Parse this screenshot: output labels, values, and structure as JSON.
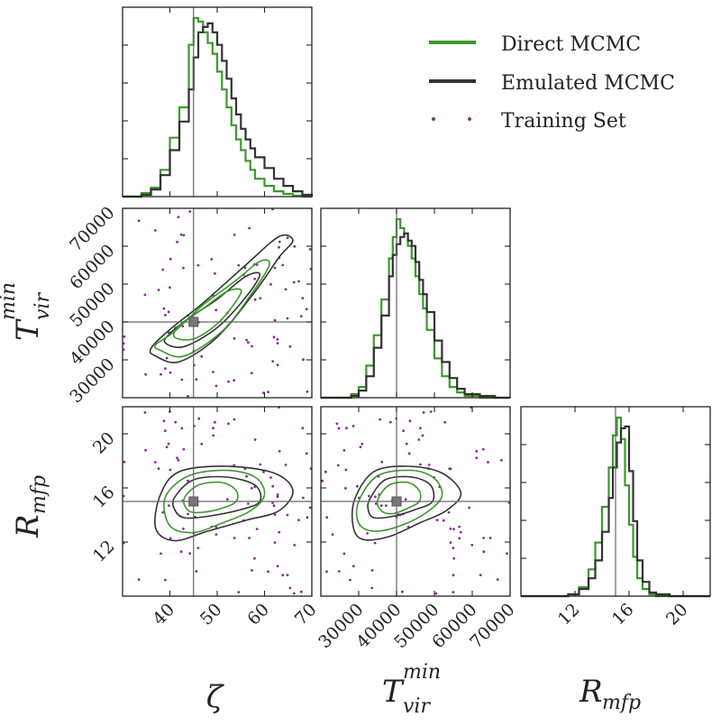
{
  "legend": {
    "items": [
      {
        "label": "Direct MCMC",
        "color": "#3a9a2a",
        "marker": "line"
      },
      {
        "label": "Emulated MCMC",
        "color": "#333333",
        "marker": "line"
      },
      {
        "label": "Training Set",
        "color": "#8a2a9a",
        "marker": "dots"
      }
    ]
  },
  "axis_labels": {
    "zeta": "ζ",
    "tvir_base": "T",
    "tvir_sup": "min",
    "tvir_sub": "vir",
    "rmfp_base": "R",
    "rmfp_sub": "mfp"
  },
  "chart_data": [
    {
      "type": "corner",
      "parameters": [
        "ζ",
        "T_vir^min",
        "R_mfp"
      ],
      "truth": {
        "zeta": 45,
        "tvir": 40000,
        "rmfp": 15
      },
      "ranges": {
        "zeta": [
          30,
          70
        ],
        "tvir": [
          20000,
          70000
        ],
        "rmfp": [
          8,
          22
        ]
      },
      "ticks": {
        "zeta": [
          40,
          50,
          60,
          70
        ],
        "tvir": [
          30000,
          40000,
          50000,
          60000,
          70000
        ],
        "rmfp": [
          12,
          16,
          20
        ]
      },
      "tick_labels": {
        "zeta": [
          "40",
          "50",
          "60",
          "70"
        ],
        "tvir_x": [
          "30000",
          "40000",
          "50000",
          "60000",
          "70000"
        ],
        "tvir_y": [
          "30000",
          "40000",
          "50000",
          "60000",
          "70000"
        ],
        "rmfp_x": [
          "12",
          "16",
          "20"
        ],
        "rmfp_y": [
          "12",
          "16",
          "20"
        ]
      }
    },
    {
      "type": "histogram",
      "panel": "zeta marginal",
      "bin_edges": [
        30,
        32,
        34,
        36,
        38,
        40,
        42,
        44,
        45,
        46,
        47,
        48,
        49,
        50,
        51,
        52,
        53,
        54,
        55,
        56,
        57,
        58,
        60,
        62,
        64,
        66,
        68,
        70
      ],
      "series": [
        {
          "name": "Direct MCMC",
          "values": [
            0,
            0,
            0.02,
            0.05,
            0.15,
            0.33,
            0.5,
            0.85,
            1.0,
            0.98,
            0.92,
            0.86,
            0.8,
            0.7,
            0.6,
            0.5,
            0.4,
            0.32,
            0.26,
            0.2,
            0.15,
            0.1,
            0.06,
            0.03,
            0.015,
            0.005,
            0
          ]
        },
        {
          "name": "Emulated MCMC",
          "values": [
            0,
            0,
            0.01,
            0.04,
            0.12,
            0.26,
            0.42,
            0.6,
            0.78,
            0.92,
            0.95,
            0.97,
            0.92,
            0.85,
            0.76,
            0.66,
            0.55,
            0.46,
            0.38,
            0.32,
            0.27,
            0.22,
            0.16,
            0.1,
            0.06,
            0.03,
            0.01
          ]
        }
      ]
    },
    {
      "type": "histogram",
      "panel": "tvir marginal",
      "bin_edges": [
        20000,
        24000,
        28000,
        30000,
        32000,
        34000,
        36000,
        38000,
        39000,
        40000,
        41000,
        42000,
        43000,
        44000,
        45000,
        46000,
        47000,
        48000,
        50000,
        52000,
        54000,
        56000,
        58000,
        62000,
        66000,
        70000
      ],
      "series": [
        {
          "name": "Direct MCMC",
          "values": [
            0,
            0,
            0.02,
            0.06,
            0.18,
            0.35,
            0.55,
            0.78,
            0.9,
            1.0,
            0.95,
            0.92,
            0.85,
            0.78,
            0.68,
            0.58,
            0.5,
            0.38,
            0.22,
            0.12,
            0.06,
            0.03,
            0.01,
            0,
            0
          ]
        },
        {
          "name": "Emulated MCMC",
          "values": [
            0,
            0,
            0.01,
            0.04,
            0.12,
            0.28,
            0.46,
            0.68,
            0.8,
            0.86,
            0.9,
            0.92,
            0.88,
            0.85,
            0.76,
            0.66,
            0.58,
            0.48,
            0.32,
            0.2,
            0.11,
            0.05,
            0.02,
            0.01,
            0
          ]
        }
      ]
    },
    {
      "type": "histogram",
      "panel": "rmfp marginal",
      "bin_edges": [
        8,
        10,
        11.5,
        12.3,
        13,
        13.5,
        14,
        14.5,
        14.8,
        15.1,
        15.4,
        15.7,
        16,
        16.3,
        16.6,
        17,
        17.5,
        18,
        19,
        20,
        22
      ],
      "series": [
        {
          "name": "Direct MCMC",
          "values": [
            0,
            0,
            0.01,
            0.05,
            0.15,
            0.3,
            0.5,
            0.72,
            0.9,
            1.0,
            0.88,
            0.62,
            0.4,
            0.22,
            0.1,
            0.04,
            0.01,
            0,
            0,
            0
          ]
        },
        {
          "name": "Emulated MCMC",
          "values": [
            0,
            0,
            0.01,
            0.04,
            0.1,
            0.2,
            0.36,
            0.55,
            0.72,
            0.86,
            0.94,
            0.95,
            0.7,
            0.42,
            0.2,
            0.08,
            0.02,
            0.01,
            0,
            0
          ]
        }
      ]
    },
    {
      "type": "contour",
      "panel": "tvir vs zeta",
      "series": [
        {
          "name": "Emulated MCMC",
          "level": "outer",
          "points": [
            [
              37,
              31000
            ],
            [
              42,
              29500
            ],
            [
              50,
              36000
            ],
            [
              58,
              48000
            ],
            [
              63,
              57000
            ],
            [
              66,
              61500
            ],
            [
              63,
              62500
            ],
            [
              56,
              55000
            ],
            [
              47,
              45000
            ],
            [
              40,
              38000
            ],
            [
              36,
              33000
            ]
          ]
        },
        {
          "name": "Emulated MCMC",
          "level": "inner",
          "points": [
            [
              39,
              34500
            ],
            [
              43,
              33500
            ],
            [
              50,
              38500
            ],
            [
              56,
              46500
            ],
            [
              59,
              52500
            ],
            [
              56,
              52000
            ],
            [
              50,
              46000
            ],
            [
              44,
              41000
            ],
            [
              40,
              37000
            ]
          ]
        },
        {
          "name": "Direct MCMC",
          "level": "outer",
          "points": [
            [
              38,
              32500
            ],
            [
              43,
              31000
            ],
            [
              51,
              37500
            ],
            [
              57,
              47000
            ],
            [
              61,
              55000
            ],
            [
              59,
              56000
            ],
            [
              54,
              51000
            ],
            [
              47,
              44500
            ],
            [
              41,
              37500
            ],
            [
              37,
              34000
            ]
          ]
        },
        {
          "name": "Direct MCMC",
          "level": "inner",
          "points": [
            [
              41,
              36000
            ],
            [
              45,
              35500
            ],
            [
              50,
              39500
            ],
            [
              54,
              45500
            ],
            [
              55,
              48500
            ],
            [
              52,
              48000
            ],
            [
              47,
              43500
            ],
            [
              42,
              39000
            ]
          ]
        }
      ]
    },
    {
      "type": "contour",
      "panel": "rmfp vs zeta",
      "series": [
        {
          "name": "Emulated MCMC",
          "level": "outer",
          "points": [
            [
              38,
              15.5
            ],
            [
              42,
              17.2
            ],
            [
              52,
              17.6
            ],
            [
              62,
              17.1
            ],
            [
              66,
              15.8
            ],
            [
              63,
              14.3
            ],
            [
              56,
              13.6
            ],
            [
              48,
              12.8
            ],
            [
              41,
              12.1
            ],
            [
              37,
              13.0
            ]
          ]
        },
        {
          "name": "Emulated MCMC",
          "level": "inner",
          "points": [
            [
              41,
              15.3
            ],
            [
              45,
              16.6
            ],
            [
              52,
              16.8
            ],
            [
              58,
              16.2
            ],
            [
              59,
              15.0
            ],
            [
              55,
              14.4
            ],
            [
              48,
              13.9
            ],
            [
              43,
              13.8
            ],
            [
              41,
              14.4
            ]
          ]
        },
        {
          "name": "Direct MCMC",
          "level": "outer",
          "points": [
            [
              39,
              15.3
            ],
            [
              44,
              16.9
            ],
            [
              52,
              17.3
            ],
            [
              58,
              16.8
            ],
            [
              60,
              15.5
            ],
            [
              57,
              14.3
            ],
            [
              51,
              13.4
            ],
            [
              45,
              12.7
            ],
            [
              40,
              13.2
            ]
          ]
        },
        {
          "name": "Direct MCMC",
          "level": "inner",
          "points": [
            [
              43,
              15.2
            ],
            [
              46,
              16.2
            ],
            [
              51,
              16.4
            ],
            [
              54,
              15.8
            ],
            [
              54,
              15.0
            ],
            [
              51,
              14.5
            ],
            [
              47,
              14.2
            ],
            [
              44,
              14.3
            ]
          ]
        }
      ]
    },
    {
      "type": "contour",
      "panel": "rmfp vs tvir",
      "series": [
        {
          "name": "Emulated MCMC",
          "level": "outer",
          "points": [
            [
              29000,
              15.2
            ],
            [
              34000,
              17.2
            ],
            [
              43000,
              17.6
            ],
            [
              52000,
              17.1
            ],
            [
              57000,
              15.6
            ],
            [
              53000,
              14.3
            ],
            [
              46000,
              13.4
            ],
            [
              38000,
              12.4
            ],
            [
              31000,
              12.2
            ],
            [
              28500,
              13.2
            ]
          ]
        },
        {
          "name": "Emulated MCMC",
          "level": "inner",
          "points": [
            [
              33000,
              15.2
            ],
            [
              37000,
              16.6
            ],
            [
              44000,
              16.8
            ],
            [
              49000,
              16.2
            ],
            [
              49500,
              15.0
            ],
            [
              45000,
              14.4
            ],
            [
              39000,
              13.9
            ],
            [
              34000,
              13.8
            ],
            [
              32500,
              14.4
            ]
          ]
        },
        {
          "name": "Direct MCMC",
          "level": "outer",
          "points": [
            [
              30000,
              15.0
            ],
            [
              35000,
              16.9
            ],
            [
              44000,
              17.3
            ],
            [
              50000,
              16.7
            ],
            [
              52000,
              15.4
            ],
            [
              48000,
              14.2
            ],
            [
              41000,
              13.2
            ],
            [
              34000,
              12.8
            ],
            [
              30000,
              13.4
            ]
          ]
        },
        {
          "name": "Direct MCMC",
          "level": "inner",
          "points": [
            [
              35000,
              15.1
            ],
            [
              38000,
              16.2
            ],
            [
              43000,
              16.4
            ],
            [
              46000,
              15.8
            ],
            [
              46000,
              15.0
            ],
            [
              43000,
              14.5
            ],
            [
              39000,
              14.1
            ],
            [
              36000,
              14.3
            ]
          ]
        }
      ]
    },
    {
      "type": "scatter",
      "panel": "training set",
      "name": "Training Set",
      "count": 90,
      "distribution": "uniform over parameter ranges"
    }
  ]
}
